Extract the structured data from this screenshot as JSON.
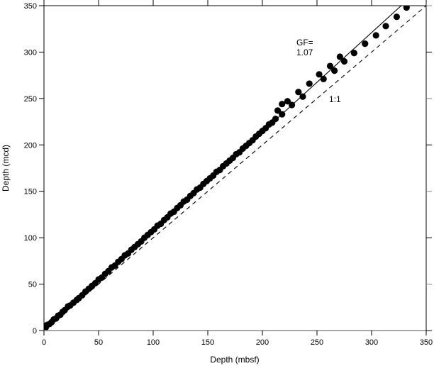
{
  "chart_data": {
    "type": "scatter",
    "title": "",
    "xlabel": "Depth (mbsf)",
    "ylabel": "Depth (mcd)",
    "xlim": [
      0,
      350
    ],
    "ylim": [
      0,
      350
    ],
    "xticks": [
      "0",
      "50",
      "100",
      "150",
      "200",
      "250",
      "300",
      "350"
    ],
    "yticks": [
      "0",
      "50",
      "100",
      "150",
      "200",
      "250",
      "300",
      "350"
    ],
    "grid": false,
    "marker_color": "#000000",
    "points": [
      [
        0,
        0
      ],
      [
        0,
        5
      ],
      [
        1.5,
        3
      ],
      [
        3,
        6
      ],
      [
        5,
        7
      ],
      [
        7,
        9
      ],
      [
        9,
        12
      ],
      [
        11,
        13
      ],
      [
        13,
        16
      ],
      [
        15,
        17
      ],
      [
        17,
        20
      ],
      [
        19,
        22
      ],
      [
        22,
        26
      ],
      [
        24,
        27
      ],
      [
        27,
        30
      ],
      [
        30,
        33
      ],
      [
        32,
        35
      ],
      [
        35,
        38
      ],
      [
        38,
        42
      ],
      [
        41,
        45
      ],
      [
        44,
        48
      ],
      [
        47,
        51
      ],
      [
        50,
        55
      ],
      [
        53,
        57
      ],
      [
        56,
        61
      ],
      [
        59,
        64
      ],
      [
        62,
        68
      ],
      [
        65,
        70
      ],
      [
        68,
        74
      ],
      [
        71,
        77
      ],
      [
        74,
        81
      ],
      [
        77,
        83
      ],
      [
        80,
        87
      ],
      [
        83,
        90
      ],
      [
        86,
        93
      ],
      [
        89,
        96
      ],
      [
        92,
        100
      ],
      [
        95,
        103
      ],
      [
        98,
        106
      ],
      [
        101,
        109
      ],
      [
        104,
        113
      ],
      [
        107,
        115
      ],
      [
        110,
        119
      ],
      [
        113,
        122
      ],
      [
        116,
        126
      ],
      [
        119,
        128
      ],
      [
        122,
        132
      ],
      [
        125,
        135
      ],
      [
        128,
        139
      ],
      [
        131,
        141
      ],
      [
        134,
        145
      ],
      [
        137,
        148
      ],
      [
        140,
        152
      ],
      [
        143,
        154
      ],
      [
        146,
        158
      ],
      [
        149,
        161
      ],
      [
        152,
        164
      ],
      [
        155,
        167
      ],
      [
        158,
        171
      ],
      [
        161,
        173
      ],
      [
        164,
        177
      ],
      [
        167,
        180
      ],
      [
        170,
        183
      ],
      [
        173,
        186
      ],
      [
        176,
        190
      ],
      [
        179,
        192
      ],
      [
        182,
        196
      ],
      [
        185,
        199
      ],
      [
        188,
        202
      ],
      [
        191,
        205
      ],
      [
        194,
        209
      ],
      [
        197,
        212
      ],
      [
        200,
        215
      ],
      [
        203,
        218
      ],
      [
        206,
        222
      ],
      [
        209,
        224
      ],
      [
        212,
        228
      ],
      [
        214,
        237
      ],
      [
        218,
        233
      ],
      [
        218,
        244
      ],
      [
        223,
        247
      ],
      [
        227,
        243
      ],
      [
        233,
        257
      ],
      [
        237,
        252
      ],
      [
        243,
        266
      ],
      [
        252,
        276
      ],
      [
        256,
        271
      ],
      [
        262,
        285
      ],
      [
        266,
        280
      ],
      [
        271,
        295
      ],
      [
        275,
        290
      ],
      [
        284,
        299
      ],
      [
        294,
        309
      ],
      [
        304,
        318
      ],
      [
        313,
        328
      ],
      [
        323,
        338
      ],
      [
        332,
        348
      ]
    ],
    "lines": [
      {
        "label_line1": "GF=",
        "label_line2": "1.07",
        "slope": 1.07,
        "style": "solid"
      },
      {
        "label": "1:1",
        "slope": 1.0,
        "style": "dashed"
      }
    ]
  }
}
